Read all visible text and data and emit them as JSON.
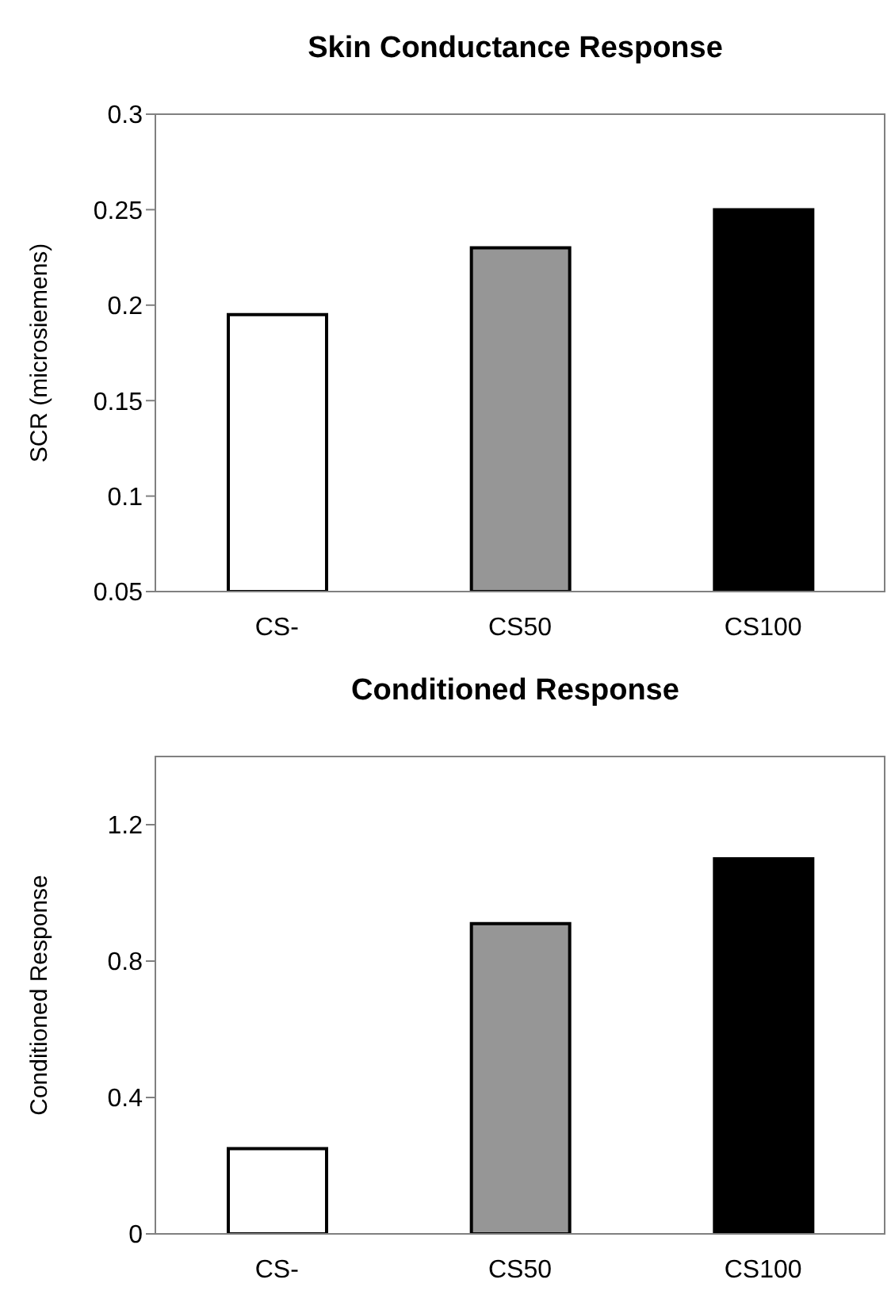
{
  "chart_data": [
    {
      "type": "bar",
      "title": "Skin Conductance Response",
      "ylabel": "SCR (microsiemens)",
      "categories": [
        "CS-",
        "CS50",
        "CS100"
      ],
      "values": [
        0.195,
        0.23,
        0.25
      ],
      "colors": [
        "#ffffff",
        "#969696",
        "#000000"
      ],
      "ylim": [
        0.05,
        0.3
      ],
      "yticks": [
        0.05,
        0.1,
        0.15,
        0.2,
        0.25,
        0.3
      ],
      "grid": false,
      "legend": false
    },
    {
      "type": "bar",
      "title": "Conditioned Response",
      "ylabel": "Conditioned Response",
      "categories": [
        "CS-",
        "CS50",
        "CS100"
      ],
      "values": [
        0.25,
        0.91,
        1.1
      ],
      "colors": [
        "#ffffff",
        "#969696",
        "#000000"
      ],
      "ylim": [
        0,
        1.4
      ],
      "yticks": [
        0,
        0.4,
        0.8,
        1.2
      ],
      "grid": false,
      "legend": false
    }
  ]
}
